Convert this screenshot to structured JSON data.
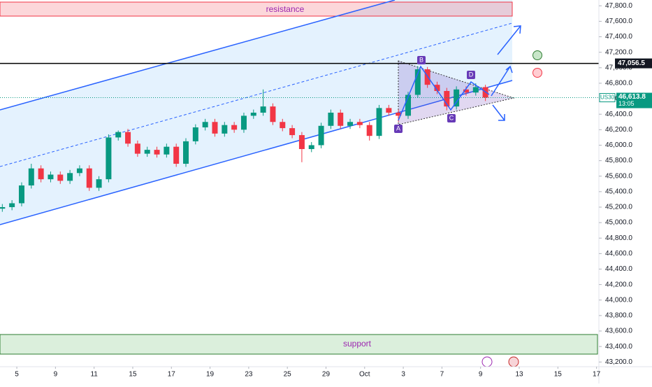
{
  "chart_data": {
    "type": "candlestick",
    "symbol": "US30",
    "up_color": "#089981",
    "down_color": "#f23645",
    "x": [
      -0.75,
      -0.25,
      0.25,
      0.75,
      1.25,
      1.75,
      2.25,
      2.75,
      3.25,
      3.75,
      4.25,
      4.75,
      5.25,
      5.75,
      6.25,
      6.75,
      7.25,
      7.75,
      8.25,
      8.75,
      9.25,
      9.75,
      10.25,
      10.75,
      11.25,
      11.75,
      12.25,
      12.75,
      13.25,
      13.75,
      14.25,
      14.75,
      15.25,
      15.75,
      16.25,
      16.75,
      17.25,
      17.75,
      18.25,
      18.75,
      19.25,
      19.75,
      20.25,
      20.75,
      21.25,
      21.75,
      22.25,
      22.75,
      23.25,
      23.75,
      24.25
    ],
    "open": [
      45180,
      45200,
      45250,
      45480,
      45700,
      45560,
      45620,
      45540,
      45640,
      45700,
      45450,
      45560,
      46100,
      46170,
      46020,
      45890,
      45940,
      45880,
      45980,
      45760,
      46050,
      46230,
      46300,
      46150,
      46260,
      46200,
      46380,
      46420,
      46500,
      46300,
      46220,
      46130,
      45950,
      46000,
      46250,
      46420,
      46250,
      46300,
      46260,
      46120,
      46480,
      46420,
      46380,
      46650,
      46980,
      46780,
      46700,
      46500,
      46720,
      46680,
      46750
    ],
    "high": [
      45240,
      45290,
      45520,
      45760,
      45740,
      45660,
      45660,
      45680,
      45740,
      45740,
      45600,
      46140,
      46190,
      46210,
      46060,
      45980,
      45980,
      46020,
      46020,
      46090,
      46270,
      46340,
      46340,
      46300,
      46300,
      46420,
      46460,
      46720,
      46540,
      46340,
      46260,
      46170,
      46040,
      46290,
      46460,
      46460,
      46340,
      46340,
      46300,
      46520,
      46520,
      46460,
      46690,
      47020,
      47010,
      46820,
      46740,
      46760,
      46760,
      46800,
      46780
    ],
    "low": [
      45140,
      45160,
      45210,
      45440,
      45520,
      45520,
      45500,
      45500,
      45600,
      45410,
      45410,
      45520,
      46060,
      45980,
      45850,
      45850,
      45840,
      45840,
      45720,
      45720,
      46010,
      46190,
      46110,
      46110,
      46160,
      46160,
      46340,
      46380,
      46260,
      46180,
      46090,
      45780,
      45910,
      45960,
      46210,
      46210,
      46210,
      46220,
      46060,
      46080,
      46380,
      46300,
      46340,
      46610,
      46740,
      46660,
      46450,
      46460,
      46640,
      46640,
      46570
    ],
    "close": [
      45200,
      45250,
      45480,
      45700,
      45560,
      45620,
      45540,
      45640,
      45700,
      45450,
      45560,
      46100,
      46170,
      46020,
      45890,
      45940,
      45880,
      45980,
      45760,
      46050,
      46230,
      46300,
      46150,
      46260,
      46200,
      46380,
      46420,
      46500,
      46300,
      46220,
      46130,
      45950,
      46000,
      46250,
      46420,
      46250,
      46300,
      46260,
      46120,
      46480,
      46420,
      46380,
      46650,
      46980,
      46780,
      46700,
      46500,
      46720,
      46680,
      46750,
      46613.8
    ],
    "xlim": [
      -0.87,
      30.05
    ],
    "xticks": [
      {
        "value": 0,
        "label": "5"
      },
      {
        "value": 2,
        "label": "9"
      },
      {
        "value": 4,
        "label": "11"
      },
      {
        "value": 6,
        "label": "15"
      },
      {
        "value": 8,
        "label": "17"
      },
      {
        "value": 10,
        "label": "19"
      },
      {
        "value": 12,
        "label": "23"
      },
      {
        "value": 14,
        "label": "25"
      },
      {
        "value": 16,
        "label": "29"
      },
      {
        "value": 18,
        "label": "Oct"
      },
      {
        "value": 20,
        "label": "3"
      },
      {
        "value": 22,
        "label": "7"
      },
      {
        "value": 24,
        "label": "9"
      },
      {
        "value": 26,
        "label": "13"
      },
      {
        "value": 28,
        "label": "15"
      },
      {
        "value": 30,
        "label": "17"
      }
    ],
    "ylim": [
      43150,
      47875
    ],
    "yticks": [
      {
        "value": 43200,
        "label": "43,200.0"
      },
      {
        "value": 43400,
        "label": "43,400.0"
      },
      {
        "value": 43600,
        "label": "43,600.0"
      },
      {
        "value": 43800,
        "label": "43,800.0"
      },
      {
        "value": 44000,
        "label": "44,000.0"
      },
      {
        "value": 44200,
        "label": "44,200.0"
      },
      {
        "value": 44400,
        "label": "44,400.0"
      },
      {
        "value": 44600,
        "label": "44,600.0"
      },
      {
        "value": 44800,
        "label": "44,800.0"
      },
      {
        "value": 45000,
        "label": "45,000.0"
      },
      {
        "value": 45200,
        "label": "45,200.0"
      },
      {
        "value": 45400,
        "label": "45,400.0"
      },
      {
        "value": 45600,
        "label": "45,600.0"
      },
      {
        "value": 45800,
        "label": "45,800.0"
      },
      {
        "value": 46000,
        "label": "46,000.0"
      },
      {
        "value": 46200,
        "label": "46,200.0"
      },
      {
        "value": 46400,
        "label": "46,400.0"
      },
      {
        "value": 46600,
        "label": "46,600.0"
      },
      {
        "value": 46800,
        "label": "46,800.0"
      },
      {
        "value": 47000,
        "label": "47,000.0"
      },
      {
        "value": 47200,
        "label": "47,200.0"
      },
      {
        "value": 47400,
        "label": "47,400.0"
      },
      {
        "value": 47600,
        "label": "47,600.0"
      },
      {
        "value": 47800,
        "label": "47,800.0"
      }
    ],
    "price_line": {
      "value": 47056.5,
      "label": "47,056.5"
    },
    "last_price": {
      "value": 46613.8,
      "label": "46,613.8",
      "countdown": "13:05"
    },
    "annotations": {
      "resistance": "resistance",
      "support": "support",
      "points": [
        "A",
        "B",
        "C",
        "D"
      ]
    }
  }
}
